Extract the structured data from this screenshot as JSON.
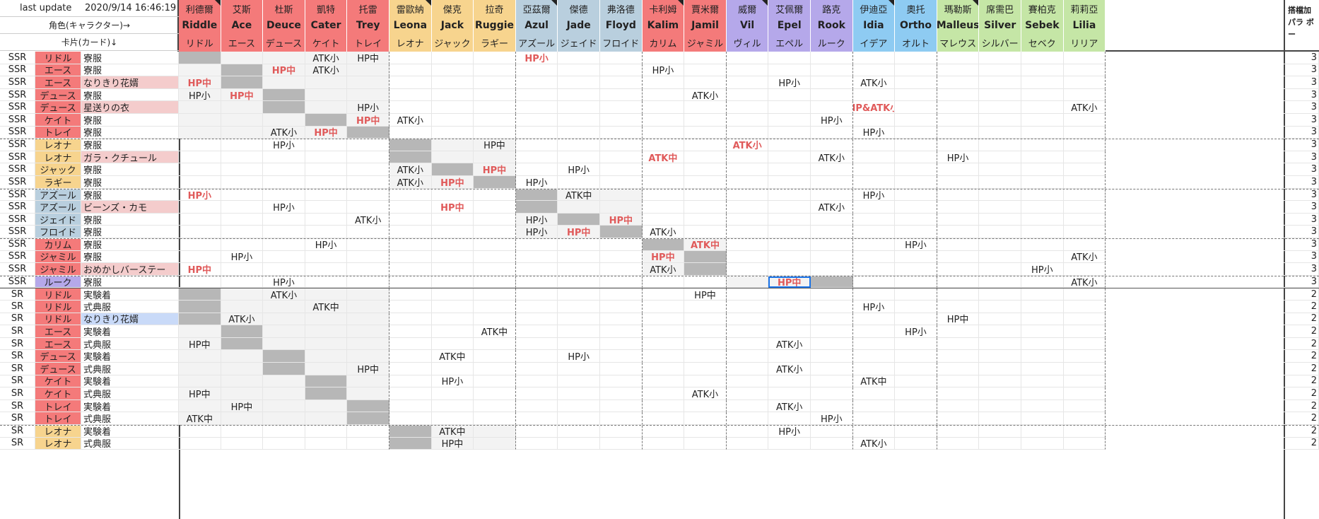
{
  "header": {
    "last_update_label": "last update",
    "last_update_value": "2020/9/14  16:46:19",
    "row2": "角色(キャラクター)→",
    "row3": "卡片(カード)↓",
    "extra": "搭檔加 パラ ボー"
  },
  "groups": [
    {
      "color": "#f47a7a",
      "chars": [
        [
          "利德爾",
          "Riddle",
          "リドル"
        ],
        [
          "艾斯",
          "Ace",
          "エース"
        ],
        [
          "杜斯",
          "Deuce",
          "デュース"
        ],
        [
          "凱特",
          "Cater",
          "ケイト"
        ],
        [
          "托雷",
          "Trey",
          "トレイ"
        ]
      ]
    },
    {
      "color": "#f7d48e",
      "chars": [
        [
          "雷歐納",
          "Leona",
          "レオナ"
        ],
        [
          "傑克",
          "Jack",
          "ジャック"
        ],
        [
          "拉奇",
          "Ruggie",
          "ラギー"
        ]
      ]
    },
    {
      "color": "#b9cfde",
      "chars": [
        [
          "亞茲爾",
          "Azul",
          "アズール"
        ],
        [
          "傑德",
          "Jade",
          "ジェイド"
        ],
        [
          "弗洛德",
          "Floyd",
          "フロイド"
        ]
      ]
    },
    {
      "color": "#f47a7a",
      "chars": [
        [
          "卡利姆",
          "Kalim",
          "カリム"
        ],
        [
          "賈米爾",
          "Jamil",
          "ジャミル"
        ]
      ]
    },
    {
      "color": "#b5a8ea",
      "chars": [
        [
          "威爾",
          "Vil",
          "ヴィル"
        ],
        [
          "艾佩爾",
          "Epel",
          "エペル"
        ],
        [
          "路克",
          "Rook",
          "ルーク"
        ]
      ]
    },
    {
      "color": "#8ecbf2",
      "chars": [
        [
          "伊迪亞",
          "Idia",
          "イデア"
        ],
        [
          "奧托",
          "Ortho",
          "オルト"
        ]
      ]
    },
    {
      "color": "#c5e6a6",
      "chars": [
        [
          "瑪勒斯",
          "Malleus",
          "マレウス"
        ],
        [
          "席需巴",
          "Silver",
          "シルバー"
        ],
        [
          "賽柏克",
          "Sebek",
          "セベク"
        ],
        [
          "莉莉亞",
          "Lilia",
          "リリア"
        ]
      ]
    }
  ],
  "rows": [
    {
      "r": "SSR",
      "n": "リドル",
      "nc": "#f47a7a",
      "k": "寮服",
      "kc": "",
      "g": 0,
      "grey": [
        0,
        0
      ],
      "v": [
        [
          3,
          "ATK小"
        ],
        [
          4,
          "HP中"
        ],
        [
          8,
          "HP小",
          1
        ]
      ]
    },
    {
      "r": "SSR",
      "n": "エース",
      "nc": "#f47a7a",
      "k": "寮服",
      "kc": "",
      "g": 0,
      "grey": [
        1,
        1
      ],
      "v": [
        [
          2,
          "HP中",
          1
        ],
        [
          3,
          "ATK小"
        ],
        [
          11,
          "HP小"
        ]
      ]
    },
    {
      "r": "SSR",
      "n": "エース",
      "nc": "#f47a7a",
      "k": "なりきり花婿",
      "kc": "#f4cccc",
      "g": 0,
      "grey": [
        1,
        1
      ],
      "v": [
        [
          0,
          "HP中",
          1
        ],
        [
          14,
          "HP小"
        ],
        [
          16,
          "ATK小"
        ]
      ]
    },
    {
      "r": "SSR",
      "n": "デュース",
      "nc": "#f47a7a",
      "k": "寮服",
      "kc": "",
      "g": 0,
      "grey": [
        2,
        2
      ],
      "v": [
        [
          0,
          "HP小"
        ],
        [
          1,
          "HP中",
          1
        ],
        [
          12,
          "ATK小"
        ]
      ]
    },
    {
      "r": "SSR",
      "n": "デュース",
      "nc": "#f47a7a",
      "k": "星送りの衣",
      "kc": "#f4cccc",
      "g": 0,
      "grey": [
        2,
        2
      ],
      "v": [
        [
          4,
          "HP小"
        ],
        [
          16,
          "HP&ATK小",
          1
        ],
        [
          21,
          "ATK小"
        ]
      ]
    },
    {
      "r": "SSR",
      "n": "ケイト",
      "nc": "#f47a7a",
      "k": "寮服",
      "kc": "",
      "g": 0,
      "grey": [
        3,
        3
      ],
      "v": [
        [
          4,
          "HP中",
          1
        ],
        [
          5,
          "ATK小"
        ],
        [
          15,
          "HP小"
        ]
      ]
    },
    {
      "r": "SSR",
      "n": "トレイ",
      "nc": "#f47a7a",
      "k": "寮服",
      "kc": "",
      "g": 0,
      "grey": [
        4,
        4
      ],
      "v": [
        [
          2,
          "ATK小"
        ],
        [
          3,
          "HP中",
          1
        ],
        [
          16,
          "HP小"
        ]
      ]
    },
    {
      "r": "SSR",
      "n": "レオナ",
      "nc": "#f7d48e",
      "k": "寮服",
      "kc": "",
      "g": 1,
      "grey": [
        5,
        5
      ],
      "v": [
        [
          2,
          "HP小"
        ],
        [
          7,
          "HP中"
        ],
        [
          13,
          "ATK小",
          1
        ]
      ],
      "bt": 1
    },
    {
      "r": "SSR",
      "n": "レオナ",
      "nc": "#f7d48e",
      "k": "ガラ・クチュール",
      "kc": "#f4cccc",
      "g": 1,
      "grey": [
        5,
        5
      ],
      "v": [
        [
          11,
          "ATK中",
          1
        ],
        [
          15,
          "ATK小"
        ],
        [
          18,
          "HP小"
        ]
      ]
    },
    {
      "r": "SSR",
      "n": "ジャック",
      "nc": "#f7d48e",
      "k": "寮服",
      "kc": "",
      "g": 1,
      "grey": [
        6,
        6
      ],
      "v": [
        [
          5,
          "ATK小"
        ],
        [
          7,
          "HP中",
          1
        ],
        [
          9,
          "HP小"
        ]
      ]
    },
    {
      "r": "SSR",
      "n": "ラギー",
      "nc": "#f7d48e",
      "k": "寮服",
      "kc": "",
      "g": 1,
      "grey": [
        7,
        7
      ],
      "v": [
        [
          5,
          "ATK小"
        ],
        [
          6,
          "HP中",
          1
        ],
        [
          8,
          "HP小"
        ]
      ]
    },
    {
      "r": "SSR",
      "n": "アズール",
      "nc": "#b9cfde",
      "k": "寮服",
      "kc": "",
      "g": 2,
      "grey": [
        8,
        8
      ],
      "v": [
        [
          0,
          "HP小",
          1
        ],
        [
          9,
          "ATK中"
        ],
        [
          16,
          "HP小"
        ]
      ],
      "bt": 1
    },
    {
      "r": "SSR",
      "n": "アズール",
      "nc": "#b9cfde",
      "k": "ビーンズ・カモ",
      "kc": "#f4cccc",
      "g": 2,
      "grey": [
        8,
        8
      ],
      "v": [
        [
          2,
          "HP小"
        ],
        [
          6,
          "HP中",
          1
        ],
        [
          15,
          "ATK小"
        ]
      ]
    },
    {
      "r": "SSR",
      "n": "ジェイド",
      "nc": "#b9cfde",
      "k": "寮服",
      "kc": "",
      "g": 2,
      "grey": [
        9,
        9
      ],
      "v": [
        [
          4,
          "ATK小"
        ],
        [
          8,
          "HP小"
        ],
        [
          10,
          "HP中",
          1
        ]
      ]
    },
    {
      "r": "SSR",
      "n": "フロイド",
      "nc": "#b9cfde",
      "k": "寮服",
      "kc": "",
      "g": 2,
      "grey": [
        10,
        10
      ],
      "v": [
        [
          8,
          "HP小"
        ],
        [
          9,
          "HP中",
          1
        ],
        [
          11,
          "ATK小"
        ]
      ]
    },
    {
      "r": "SSR",
      "n": "カリム",
      "nc": "#f47a7a",
      "k": "寮服",
      "kc": "",
      "g": 3,
      "grey": [
        11,
        11
      ],
      "v": [
        [
          3,
          "HP小"
        ],
        [
          12,
          "ATK中",
          1
        ],
        [
          17,
          "HP小"
        ]
      ],
      "bt": 1
    },
    {
      "r": "SSR",
      "n": "ジャミル",
      "nc": "#f47a7a",
      "k": "寮服",
      "kc": "",
      "g": 3,
      "grey": [
        12,
        12
      ],
      "v": [
        [
          1,
          "HP小"
        ],
        [
          11,
          "HP中",
          1
        ],
        [
          21,
          "ATK小"
        ]
      ]
    },
    {
      "r": "SSR",
      "n": "ジャミル",
      "nc": "#f47a7a",
      "k": "おめかしバーステー",
      "kc": "#f4cccc",
      "g": 3,
      "grey": [
        12,
        12
      ],
      "v": [
        [
          0,
          "HP中",
          1
        ],
        [
          11,
          "ATK小"
        ],
        [
          20,
          "HP小"
        ]
      ]
    },
    {
      "r": "SSR",
      "n": "ルーク",
      "nc": "#b5a8ea",
      "k": "寮服",
      "kc": "",
      "g": 4,
      "grey": [
        15,
        15
      ],
      "v": [
        [
          2,
          "HP小"
        ],
        [
          14,
          "HP中",
          1
        ],
        [
          21,
          "ATK小"
        ]
      ],
      "bt": 1,
      "sel": 14
    },
    {
      "r": "SR",
      "n": "リドル",
      "nc": "#f47a7a",
      "k": "実験着",
      "kc": "",
      "g": 0,
      "grey": [
        0,
        0
      ],
      "v": [
        [
          2,
          "ATK小"
        ],
        [
          12,
          "HP中"
        ]
      ],
      "mt": 1
    },
    {
      "r": "SR",
      "n": "リドル",
      "nc": "#f47a7a",
      "k": "式典服",
      "kc": "",
      "g": 0,
      "grey": [
        0,
        0
      ],
      "v": [
        [
          3,
          "ATK中"
        ],
        [
          16,
          "HP小"
        ]
      ]
    },
    {
      "r": "SR",
      "n": "リドル",
      "nc": "#f47a7a",
      "k": "なりきり花婿",
      "kc": "#c9daf8",
      "g": 0,
      "grey": [
        0,
        0
      ],
      "v": [
        [
          1,
          "ATK小"
        ],
        [
          18,
          "HP中"
        ]
      ]
    },
    {
      "r": "SR",
      "n": "エース",
      "nc": "#f47a7a",
      "k": "実験着",
      "kc": "",
      "g": 0,
      "grey": [
        1,
        1
      ],
      "v": [
        [
          7,
          "ATK中"
        ],
        [
          17,
          "HP小"
        ]
      ]
    },
    {
      "r": "SR",
      "n": "エース",
      "nc": "#f47a7a",
      "k": "式典服",
      "kc": "",
      "g": 0,
      "grey": [
        1,
        1
      ],
      "v": [
        [
          0,
          "HP中"
        ],
        [
          14,
          "ATK小"
        ]
      ]
    },
    {
      "r": "SR",
      "n": "デュース",
      "nc": "#f47a7a",
      "k": "実験着",
      "kc": "",
      "g": 0,
      "grey": [
        2,
        2
      ],
      "v": [
        [
          6,
          "ATK中"
        ],
        [
          9,
          "HP小"
        ]
      ]
    },
    {
      "r": "SR",
      "n": "デュース",
      "nc": "#f47a7a",
      "k": "式典服",
      "kc": "",
      "g": 0,
      "grey": [
        2,
        2
      ],
      "v": [
        [
          4,
          "HP中"
        ],
        [
          14,
          "ATK小"
        ]
      ]
    },
    {
      "r": "SR",
      "n": "ケイト",
      "nc": "#f47a7a",
      "k": "実験着",
      "kc": "",
      "g": 0,
      "grey": [
        3,
        3
      ],
      "v": [
        [
          6,
          "HP小"
        ],
        [
          16,
          "ATK中"
        ]
      ]
    },
    {
      "r": "SR",
      "n": "ケイト",
      "nc": "#f47a7a",
      "k": "式典服",
      "kc": "",
      "g": 0,
      "grey": [
        3,
        3
      ],
      "v": [
        [
          0,
          "HP中"
        ],
        [
          12,
          "ATK小"
        ]
      ]
    },
    {
      "r": "SR",
      "n": "トレイ",
      "nc": "#f47a7a",
      "k": "実験着",
      "kc": "",
      "g": 0,
      "grey": [
        4,
        4
      ],
      "v": [
        [
          1,
          "HP中"
        ],
        [
          14,
          "ATK小"
        ]
      ]
    },
    {
      "r": "SR",
      "n": "トレイ",
      "nc": "#f47a7a",
      "k": "式典服",
      "kc": "",
      "g": 0,
      "grey": [
        4,
        4
      ],
      "v": [
        [
          0,
          "ATK中"
        ],
        [
          15,
          "HP小"
        ]
      ]
    },
    {
      "r": "SR",
      "n": "レオナ",
      "nc": "#f7d48e",
      "k": "実験着",
      "kc": "",
      "g": 1,
      "grey": [
        5,
        5
      ],
      "v": [
        [
          6,
          "ATK中"
        ],
        [
          14,
          "HP小"
        ]
      ],
      "bt": 1
    },
    {
      "r": "SR",
      "n": "レオナ",
      "nc": "#f7d48e",
      "k": "式典服",
      "kc": "",
      "g": 1,
      "grey": [
        5,
        5
      ],
      "v": [
        [
          6,
          "HP中"
        ],
        [
          16,
          "ATK小"
        ]
      ]
    }
  ],
  "bonus": [
    "3",
    "3",
    "3",
    "3",
    "3",
    "3",
    "3",
    "3",
    "3",
    "3",
    "3",
    "3",
    "3",
    "3",
    "3",
    "3",
    "3",
    "3",
    "3",
    "2",
    "2",
    "2",
    "2",
    "2",
    "2",
    "2",
    "2",
    "2",
    "2",
    "2",
    "2",
    "2"
  ]
}
